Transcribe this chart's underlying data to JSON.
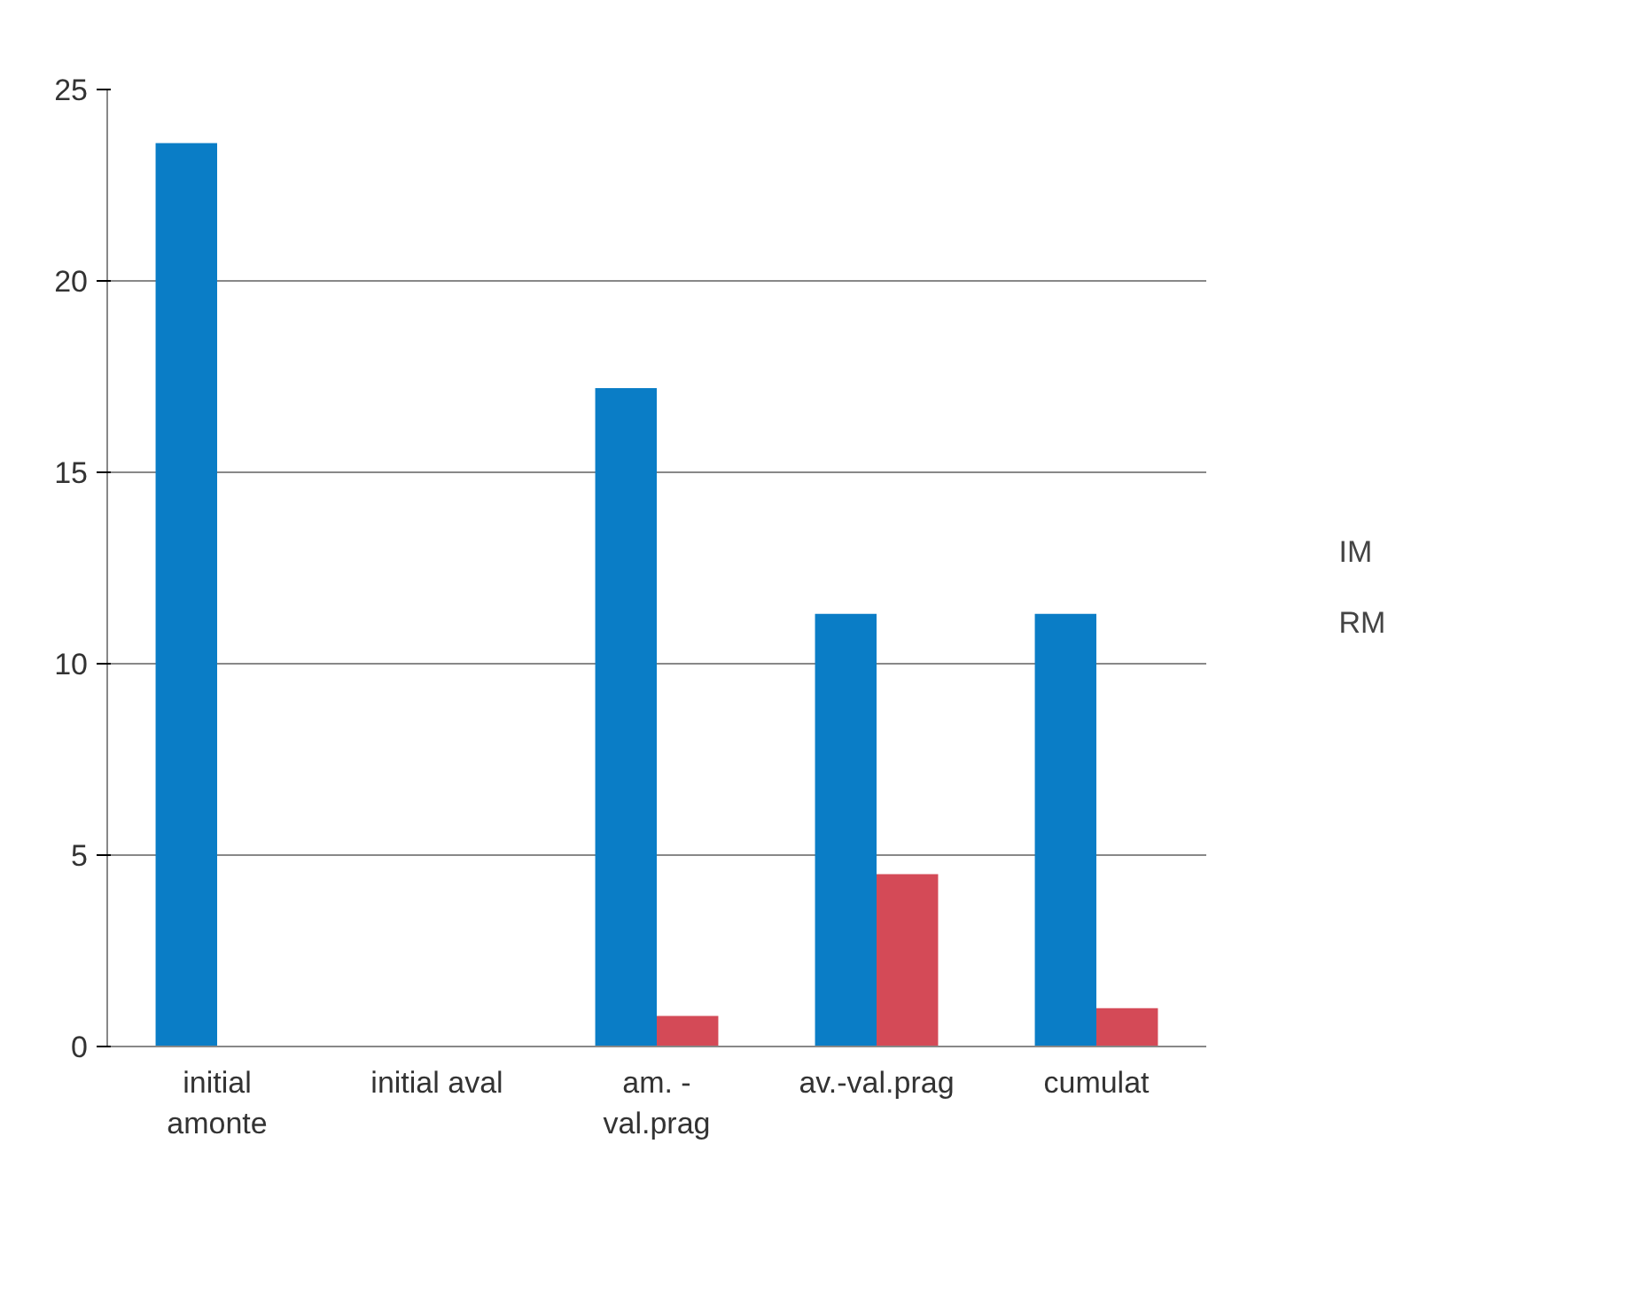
{
  "chart_data": {
    "type": "bar",
    "categories": [
      "initial amonte",
      "initial aval",
      "am. - val.prag",
      "av.-val.prag",
      "cumulat"
    ],
    "series": [
      {
        "name": "IM",
        "color": "#0a7dc6",
        "values": [
          23.6,
          0,
          17.2,
          11.3,
          11.3
        ]
      },
      {
        "name": "RM",
        "color": "#d44a57",
        "values": [
          0,
          0,
          0.8,
          4.5,
          1.0
        ]
      }
    ],
    "ylim": [
      0,
      25
    ],
    "yticks": [
      0,
      5,
      10,
      15,
      20,
      25
    ],
    "grid": "y",
    "legend": "right"
  }
}
